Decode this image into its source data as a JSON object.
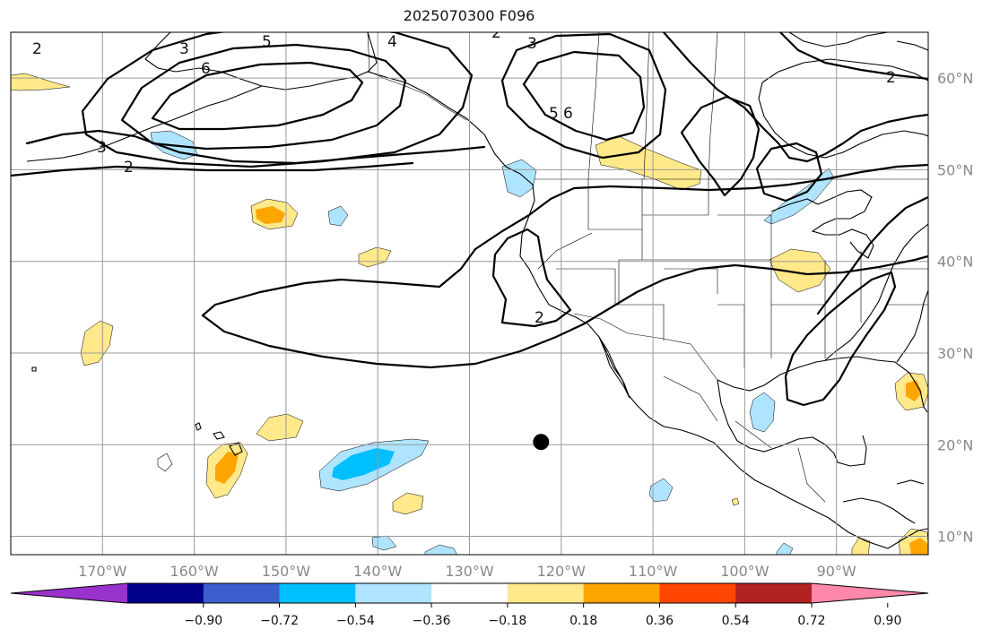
{
  "title": "2025070300 F096",
  "map": {
    "lon_range": [
      -180,
      -80
    ],
    "lat_range": [
      8,
      65
    ],
    "lon_ticks": [
      {
        "value": -170,
        "label": "170°W"
      },
      {
        "value": -160,
        "label": "160°W"
      },
      {
        "value": -150,
        "label": "150°W"
      },
      {
        "value": -140,
        "label": "140°W"
      },
      {
        "value": -130,
        "label": "130°W"
      },
      {
        "value": -120,
        "label": "120°W"
      },
      {
        "value": -110,
        "label": "110°W"
      },
      {
        "value": -100,
        "label": "100°W"
      },
      {
        "value": -90,
        "label": "90°W"
      }
    ],
    "lat_ticks": [
      {
        "value": 10,
        "label": "10°N"
      },
      {
        "value": 20,
        "label": "20°N"
      },
      {
        "value": 30,
        "label": "30°N"
      },
      {
        "value": 40,
        "label": "40°N"
      },
      {
        "value": 50,
        "label": "50°N"
      },
      {
        "value": 60,
        "label": "60°N"
      }
    ],
    "grid": true,
    "marker": {
      "lon": -122.2,
      "lat": 20.3
    }
  },
  "contour_labels": [
    "2",
    "3",
    "3",
    "4",
    "5",
    "6",
    "5",
    "6",
    "2",
    "2",
    "2",
    "3",
    "2"
  ],
  "colorbar": {
    "colors": [
      "#9932cc",
      "#00008b",
      "#3a5fcd",
      "#00bfff",
      "#aee4ff",
      "#ffffff",
      "#ffe98a",
      "#ffa500",
      "#ff4500",
      "#b22222",
      "#ff88aa"
    ],
    "ticks": [
      "−0.90",
      "−0.72",
      "−0.54",
      "−0.36",
      "−0.18",
      "0.18",
      "0.36",
      "0.54",
      "0.72",
      "0.90"
    ]
  }
}
